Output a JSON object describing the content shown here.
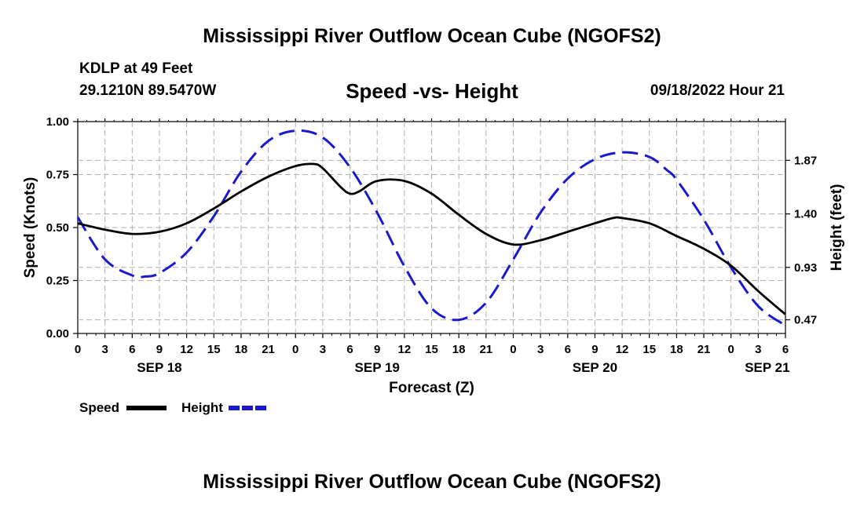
{
  "header": {
    "title": "Mississippi River Outflow Ocean Cube (NGOFS2)",
    "station": "KDLP at 49 Feet",
    "coords": "29.1210N  89.5470W",
    "chart_title": "Speed -vs- Height",
    "datetime": "09/18/2022 Hour 21"
  },
  "footer": {
    "title": "Mississippi River Outflow Ocean Cube (NGOFS2)"
  },
  "colors": {
    "speed": "#000000",
    "height": "#1a1acc",
    "grid": "#b0b0b0"
  },
  "chart_data": {
    "type": "line",
    "title": "Speed -vs- Height",
    "xlabel": "Forecast (Z)",
    "ylabel": "Speed (Knots)",
    "ylabel_right": "Height (feet)",
    "xlim": [
      0,
      78
    ],
    "ylim": [
      0,
      1.0
    ],
    "ylim_right": [
      0.35,
      2.21
    ],
    "grid": true,
    "legend_position": "bottom-left",
    "x_ticks": [
      0,
      3,
      6,
      9,
      12,
      15,
      18,
      21,
      24,
      27,
      30,
      33,
      36,
      39,
      42,
      45,
      48,
      51,
      54,
      57,
      60,
      63,
      66,
      69,
      72,
      75,
      78
    ],
    "x_tick_labels": [
      "0",
      "3",
      "6",
      "9",
      "12",
      "15",
      "18",
      "21",
      "0",
      "3",
      "6",
      "9",
      "12",
      "15",
      "18",
      "21",
      "0",
      "3",
      "6",
      "9",
      "12",
      "15",
      "18",
      "21",
      "0",
      "3",
      "6"
    ],
    "date_labels": [
      {
        "x": 9,
        "label": "SEP 18"
      },
      {
        "x": 33,
        "label": "SEP 19"
      },
      {
        "x": 57,
        "label": "SEP 20"
      },
      {
        "x": 76,
        "label": "SEP 21"
      }
    ],
    "y_ticks": [
      0.0,
      0.25,
      0.5,
      0.75,
      1.0
    ],
    "y_tick_labels": [
      "0.00",
      "0.25",
      "0.50",
      "0.75",
      "1.00"
    ],
    "y_right_ticks": [
      0.47,
      0.93,
      1.4,
      1.87
    ],
    "y_right_tick_labels": [
      "0.47",
      "0.93",
      "1.40",
      "1.87"
    ],
    "series": [
      {
        "name": "Speed",
        "axis": "left",
        "style": "solid",
        "x": [
          0,
          3,
          6,
          9,
          12,
          15,
          18,
          21,
          24,
          26,
          27,
          29,
          30,
          31,
          33,
          36,
          39,
          42,
          45,
          48,
          51,
          54,
          57,
          59,
          60,
          63,
          66,
          69,
          72,
          75,
          78
        ],
        "values": [
          0.52,
          0.49,
          0.47,
          0.48,
          0.52,
          0.59,
          0.67,
          0.74,
          0.79,
          0.8,
          0.78,
          0.69,
          0.66,
          0.67,
          0.72,
          0.72,
          0.66,
          0.56,
          0.47,
          0.42,
          0.44,
          0.48,
          0.52,
          0.545,
          0.545,
          0.52,
          0.46,
          0.4,
          0.32,
          0.2,
          0.09
        ]
      },
      {
        "name": "Height",
        "axis": "right",
        "style": "dashed",
        "x": [
          0,
          3,
          6,
          7.5,
          9,
          12,
          15,
          18,
          21,
          24,
          27,
          30,
          33,
          36,
          39,
          42,
          45,
          48,
          51,
          54,
          57,
          60,
          63,
          65,
          66,
          69,
          72,
          75,
          78
        ],
        "values": [
          1.37,
          1.0,
          0.86,
          0.85,
          0.88,
          1.06,
          1.38,
          1.77,
          2.04,
          2.13,
          2.07,
          1.81,
          1.41,
          0.94,
          0.57,
          0.47,
          0.62,
          1.0,
          1.41,
          1.71,
          1.88,
          1.94,
          1.9,
          1.78,
          1.7,
          1.35,
          0.93,
          0.59,
          0.42
        ]
      }
    ]
  }
}
